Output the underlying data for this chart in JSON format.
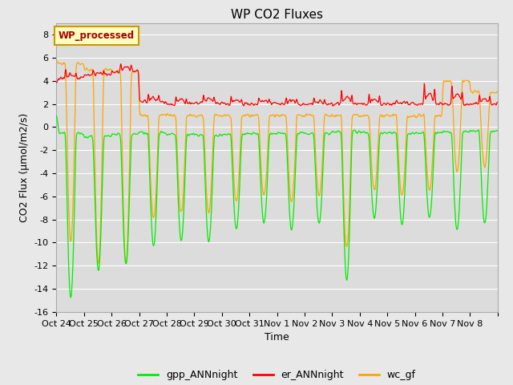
{
  "title": "WP CO2 Fluxes",
  "xlabel": "Time",
  "ylabel": "CO2 Flux (μmol/m2/s)",
  "ylim": [
    -16,
    9
  ],
  "yticks": [
    -16,
    -14,
    -12,
    -10,
    -8,
    -6,
    -4,
    -2,
    0,
    2,
    4,
    6,
    8
  ],
  "fig_bg_color": "#e8e8e8",
  "plot_bg_color": "#dcdcdc",
  "grid_color": "#ffffff",
  "tick_labels": [
    "Oct 24",
    "Oct 25",
    "Oct 26",
    "Oct 27",
    "Oct 28",
    "Oct 29",
    "Oct 30",
    "Oct 31",
    "Nov 1",
    "Nov 2",
    "Nov 3",
    "Nov 4",
    "Nov 5",
    "Nov 6",
    "Nov 7",
    "Nov 8"
  ],
  "legend_labels": [
    "gpp_ANNnight",
    "er_ANNnight",
    "wc_gf"
  ],
  "line_colors": {
    "gpp": "#00ee00",
    "er": "#ff0000",
    "wc": "#ffa500"
  },
  "legend_colors": [
    "#00ee00",
    "#ff0000",
    "#ffa500"
  ],
  "annotation_text": "WP_processed",
  "annotation_bg": "#ffffc0",
  "annotation_border": "#cc9900",
  "annotation_text_color": "#aa0000",
  "title_fontsize": 11,
  "axis_label_fontsize": 9,
  "tick_fontsize": 8,
  "days": 16,
  "pts_per_day": 96
}
